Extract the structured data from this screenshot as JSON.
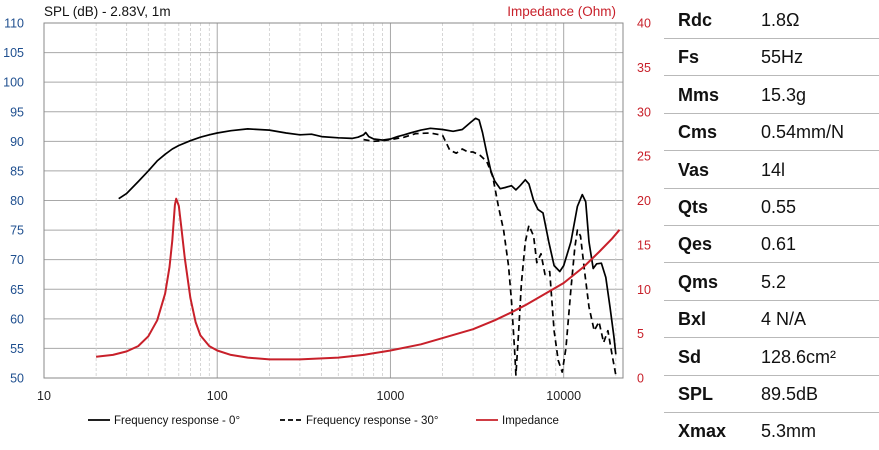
{
  "chart_data": {
    "type": "line",
    "title_left": "SPL (dB) - 2.83V, 1m",
    "title_right": "Impedance (Ohm)",
    "x_scale": "log",
    "xlim": [
      10,
      22000
    ],
    "ylim_left": [
      50,
      110
    ],
    "ylim_right": [
      0,
      40
    ],
    "x_ticks": [
      {
        "value": 10,
        "label": "10"
      },
      {
        "value": 100,
        "label": "100"
      },
      {
        "value": 1000,
        "label": "1000"
      },
      {
        "value": 10000,
        "label": "10000"
      }
    ],
    "y_left_ticks": [
      "50",
      "55",
      "60",
      "65",
      "70",
      "75",
      "80",
      "85",
      "90",
      "95",
      "100",
      "105",
      "110"
    ],
    "y_right_ticks": [
      "0",
      "5",
      "10",
      "15",
      "20",
      "25",
      "30",
      "35",
      "40"
    ],
    "series": [
      {
        "name": "Frequency response - 0°",
        "axis": "left",
        "color": "#000000",
        "dash": "solid",
        "points": [
          [
            27,
            80.3
          ],
          [
            30,
            81.2
          ],
          [
            35,
            83.2
          ],
          [
            40,
            85.0
          ],
          [
            45,
            86.7
          ],
          [
            50,
            87.8
          ],
          [
            55,
            88.7
          ],
          [
            60,
            89.3
          ],
          [
            70,
            90.1
          ],
          [
            80,
            90.7
          ],
          [
            90,
            91.1
          ],
          [
            100,
            91.4
          ],
          [
            120,
            91.8
          ],
          [
            150,
            92.1
          ],
          [
            200,
            91.9
          ],
          [
            250,
            91.4
          ],
          [
            300,
            91.1
          ],
          [
            350,
            91.2
          ],
          [
            400,
            90.8
          ],
          [
            500,
            90.6
          ],
          [
            600,
            90.5
          ],
          [
            650,
            90.7
          ],
          [
            700,
            91.1
          ],
          [
            720,
            91.5
          ],
          [
            750,
            90.8
          ],
          [
            800,
            90.4
          ],
          [
            900,
            90.2
          ],
          [
            1000,
            90.4
          ],
          [
            1100,
            90.8
          ],
          [
            1200,
            91.1
          ],
          [
            1300,
            91.4
          ],
          [
            1500,
            91.9
          ],
          [
            1700,
            92.2
          ],
          [
            2000,
            92.0
          ],
          [
            2300,
            91.7
          ],
          [
            2600,
            92.0
          ],
          [
            2900,
            93.2
          ],
          [
            3100,
            93.9
          ],
          [
            3250,
            93.6
          ],
          [
            3400,
            91.5
          ],
          [
            3600,
            88.0
          ],
          [
            3800,
            85.0
          ],
          [
            4000,
            83.3
          ],
          [
            4300,
            82.0
          ],
          [
            4600,
            82.2
          ],
          [
            5000,
            82.5
          ],
          [
            5300,
            81.8
          ],
          [
            5600,
            82.5
          ],
          [
            6000,
            83.5
          ],
          [
            6300,
            82.8
          ],
          [
            6700,
            80.0
          ],
          [
            7100,
            78.5
          ],
          [
            7600,
            77.9
          ],
          [
            8200,
            73.0
          ],
          [
            8800,
            69.0
          ],
          [
            9500,
            68.0
          ],
          [
            10000,
            69.0
          ],
          [
            11000,
            73.0
          ],
          [
            12000,
            79.0
          ],
          [
            12800,
            81.0
          ],
          [
            13400,
            79.8
          ],
          [
            14000,
            73.0
          ],
          [
            14800,
            68.5
          ],
          [
            15500,
            69.3
          ],
          [
            16500,
            69.4
          ],
          [
            17500,
            67.0
          ],
          [
            18500,
            62.0
          ],
          [
            19500,
            57.0
          ],
          [
            20000,
            54.0
          ]
        ]
      },
      {
        "name": "Frequency response - 30°",
        "axis": "left",
        "color": "#000000",
        "dash": "dashed",
        "points": [
          [
            700,
            90.3
          ],
          [
            800,
            90.0
          ],
          [
            900,
            90.1
          ],
          [
            1000,
            90.3
          ],
          [
            1200,
            90.7
          ],
          [
            1400,
            91.3
          ],
          [
            1700,
            91.4
          ],
          [
            2000,
            91.0
          ],
          [
            2200,
            88.5
          ],
          [
            2400,
            88.0
          ],
          [
            2600,
            88.7
          ],
          [
            2800,
            88.2
          ],
          [
            3000,
            88.2
          ],
          [
            3300,
            87.6
          ],
          [
            3600,
            86.6
          ],
          [
            3900,
            84.0
          ],
          [
            4200,
            79.0
          ],
          [
            4500,
            75.0
          ],
          [
            4800,
            69.0
          ],
          [
            5000,
            63.0
          ],
          [
            5200,
            55.0
          ],
          [
            5300,
            50.5
          ],
          [
            5500,
            58.0
          ],
          [
            5700,
            66.0
          ],
          [
            6000,
            73.0
          ],
          [
            6300,
            75.8
          ],
          [
            6700,
            74.0
          ],
          [
            7000,
            69.5
          ],
          [
            7400,
            71.0
          ],
          [
            7800,
            67.5
          ],
          [
            8300,
            68.0
          ],
          [
            8800,
            58.0
          ],
          [
            9300,
            53.0
          ],
          [
            9800,
            51.0
          ],
          [
            10300,
            55.0
          ],
          [
            11000,
            65.0
          ],
          [
            11600,
            72.0
          ],
          [
            12000,
            75.0
          ],
          [
            12500,
            74.0
          ],
          [
            13200,
            68.0
          ],
          [
            14000,
            62.0
          ],
          [
            15000,
            58.0
          ],
          [
            16000,
            59.5
          ],
          [
            17000,
            56.0
          ],
          [
            18000,
            58.0
          ],
          [
            19000,
            54.0
          ],
          [
            20000,
            50.5
          ]
        ]
      },
      {
        "name": "Impedance",
        "axis": "right",
        "color": "#c8202a",
        "dash": "solid",
        "points": [
          [
            20,
            2.4
          ],
          [
            25,
            2.6
          ],
          [
            30,
            3.0
          ],
          [
            35,
            3.6
          ],
          [
            40,
            4.7
          ],
          [
            45,
            6.5
          ],
          [
            50,
            9.5
          ],
          [
            53,
            12.5
          ],
          [
            55,
            15.5
          ],
          [
            57,
            19.5
          ],
          [
            58,
            20.2
          ],
          [
            60,
            19.4
          ],
          [
            62,
            17.0
          ],
          [
            65,
            13.5
          ],
          [
            70,
            9.0
          ],
          [
            75,
            6.3
          ],
          [
            80,
            4.8
          ],
          [
            90,
            3.6
          ],
          [
            100,
            3.1
          ],
          [
            120,
            2.6
          ],
          [
            150,
            2.3
          ],
          [
            200,
            2.1
          ],
          [
            300,
            2.1
          ],
          [
            500,
            2.3
          ],
          [
            700,
            2.6
          ],
          [
            1000,
            3.1
          ],
          [
            1500,
            3.8
          ],
          [
            2000,
            4.5
          ],
          [
            3000,
            5.5
          ],
          [
            4000,
            6.5
          ],
          [
            5000,
            7.4
          ],
          [
            6000,
            8.2
          ],
          [
            8000,
            9.6
          ],
          [
            10000,
            10.7
          ],
          [
            13000,
            12.5
          ],
          [
            16000,
            14.2
          ],
          [
            19000,
            15.7
          ],
          [
            21000,
            16.7
          ]
        ]
      }
    ]
  },
  "specs": [
    {
      "name": "Rdc",
      "value": "1.8Ω"
    },
    {
      "name": "Fs",
      "value": "55Hz"
    },
    {
      "name": "Mms",
      "value": "15.3g"
    },
    {
      "name": "Cms",
      "value": "0.54mm/N"
    },
    {
      "name": "Vas",
      "value": "14l"
    },
    {
      "name": "Qts",
      "value": "0.55"
    },
    {
      "name": "Qes",
      "value": "0.61"
    },
    {
      "name": "Qms",
      "value": "5.2"
    },
    {
      "name": "Bxl",
      "value": "4 N/A"
    },
    {
      "name": "Sd",
      "value": "128.6cm²"
    },
    {
      "name": "SPL",
      "value": "89.5dB"
    },
    {
      "name": "Xmax",
      "value": "5.3mm"
    }
  ]
}
